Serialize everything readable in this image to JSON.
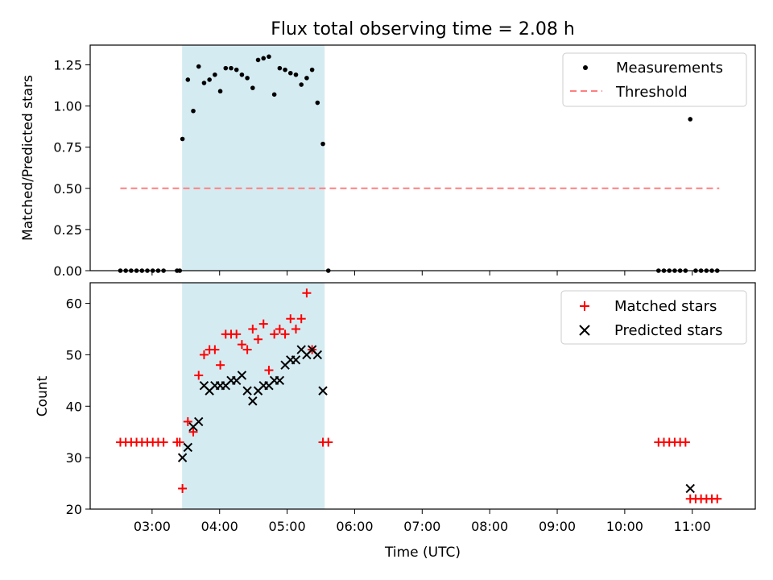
{
  "title": "Flux total observing time = 2.08 h",
  "colors": {
    "highlight": "#add8e6",
    "measurement": "#000000",
    "threshold": "#ff7f7f",
    "matched": "#ff0000",
    "predicted": "#000000"
  },
  "chart_data": [
    {
      "type": "scatter",
      "ylabel": "Matched/Predicted stars",
      "xlabel": "",
      "ylim": [
        0,
        1.37
      ],
      "xlim_hours": [
        2.0833,
        11.9333
      ],
      "yticks": [
        "0.00",
        "0.25",
        "0.50",
        "0.75",
        "1.00",
        "1.25"
      ],
      "grid": false,
      "legend_placement": "top-right",
      "legend": {
        "measurements": "Measurements",
        "threshold": "Threshold"
      },
      "highlight_span_hours": [
        3.45,
        5.55
      ],
      "threshold": {
        "value": 0.5,
        "x_from_hours": 2.53,
        "x_to_hours": 11.4
      },
      "series": [
        {
          "name": "Measurements",
          "points": [
            [
              2.53,
              0.0
            ],
            [
              2.61,
              0.0
            ],
            [
              2.69,
              0.0
            ],
            [
              2.77,
              0.0
            ],
            [
              2.85,
              0.0
            ],
            [
              2.93,
              0.0
            ],
            [
              3.01,
              0.0
            ],
            [
              3.09,
              0.0
            ],
            [
              3.17,
              0.0
            ],
            [
              3.37,
              0.0
            ],
            [
              3.41,
              0.0
            ],
            [
              3.45,
              0.8
            ],
            [
              3.53,
              1.16
            ],
            [
              3.61,
              0.97
            ],
            [
              3.69,
              1.24
            ],
            [
              3.77,
              1.14
            ],
            [
              3.85,
              1.16
            ],
            [
              3.93,
              1.19
            ],
            [
              4.01,
              1.09
            ],
            [
              4.09,
              1.23
            ],
            [
              4.17,
              1.23
            ],
            [
              4.25,
              1.22
            ],
            [
              4.33,
              1.19
            ],
            [
              4.41,
              1.17
            ],
            [
              4.49,
              1.11
            ],
            [
              4.57,
              1.28
            ],
            [
              4.65,
              1.29
            ],
            [
              4.73,
              1.3
            ],
            [
              4.81,
              1.07
            ],
            [
              4.89,
              1.23
            ],
            [
              4.97,
              1.22
            ],
            [
              5.05,
              1.2
            ],
            [
              5.13,
              1.19
            ],
            [
              5.21,
              1.13
            ],
            [
              5.29,
              1.17
            ],
            [
              5.37,
              1.22
            ],
            [
              5.45,
              1.02
            ],
            [
              5.53,
              0.77
            ],
            [
              5.61,
              0.0
            ],
            [
              10.5,
              0.0
            ],
            [
              10.58,
              0.0
            ],
            [
              10.66,
              0.0
            ],
            [
              10.74,
              0.0
            ],
            [
              10.82,
              0.0
            ],
            [
              10.9,
              0.0
            ],
            [
              10.97,
              0.92
            ],
            [
              11.05,
              0.0
            ],
            [
              11.13,
              0.0
            ],
            [
              11.21,
              0.0
            ],
            [
              11.29,
              0.0
            ],
            [
              11.37,
              0.0
            ]
          ]
        }
      ]
    },
    {
      "type": "scatter",
      "ylabel": "Count",
      "xlabel": "Time (UTC)",
      "ylim": [
        20,
        64
      ],
      "xlim_hours": [
        2.0833,
        11.9333
      ],
      "yticks": [
        "20",
        "30",
        "40",
        "50",
        "60"
      ],
      "xticks": [
        "03:00",
        "04:00",
        "05:00",
        "06:00",
        "07:00",
        "08:00",
        "09:00",
        "10:00",
        "11:00"
      ],
      "grid": false,
      "legend_placement": "top-right",
      "highlight_span_hours": [
        3.45,
        5.55
      ],
      "series": [
        {
          "name": "Matched stars",
          "points": [
            [
              2.53,
              33
            ],
            [
              2.61,
              33
            ],
            [
              2.69,
              33
            ],
            [
              2.77,
              33
            ],
            [
              2.85,
              33
            ],
            [
              2.93,
              33
            ],
            [
              3.01,
              33
            ],
            [
              3.09,
              33
            ],
            [
              3.17,
              33
            ],
            [
              3.37,
              33
            ],
            [
              3.41,
              33
            ],
            [
              3.45,
              24
            ],
            [
              3.53,
              37
            ],
            [
              3.61,
              35
            ],
            [
              3.69,
              46
            ],
            [
              3.77,
              50
            ],
            [
              3.85,
              51
            ],
            [
              3.93,
              51
            ],
            [
              4.01,
              48
            ],
            [
              4.09,
              54
            ],
            [
              4.17,
              54
            ],
            [
              4.25,
              54
            ],
            [
              4.33,
              52
            ],
            [
              4.41,
              51
            ],
            [
              4.49,
              55
            ],
            [
              4.57,
              53
            ],
            [
              4.65,
              56
            ],
            [
              4.73,
              47
            ],
            [
              4.81,
              54
            ],
            [
              4.89,
              55
            ],
            [
              4.97,
              54
            ],
            [
              5.05,
              57
            ],
            [
              5.13,
              55
            ],
            [
              5.21,
              57
            ],
            [
              5.29,
              62
            ],
            [
              5.37,
              51
            ],
            [
              5.53,
              33
            ],
            [
              5.61,
              33
            ],
            [
              10.5,
              33
            ],
            [
              10.58,
              33
            ],
            [
              10.66,
              33
            ],
            [
              10.74,
              33
            ],
            [
              10.82,
              33
            ],
            [
              10.9,
              33
            ],
            [
              10.97,
              22
            ],
            [
              11.05,
              22
            ],
            [
              11.13,
              22
            ],
            [
              11.21,
              22
            ],
            [
              11.29,
              22
            ],
            [
              11.37,
              22
            ]
          ]
        },
        {
          "name": "Predicted stars",
          "points": [
            [
              3.45,
              30
            ],
            [
              3.53,
              32
            ],
            [
              3.61,
              36
            ],
            [
              3.69,
              37
            ],
            [
              3.77,
              44
            ],
            [
              3.85,
              43
            ],
            [
              3.93,
              44
            ],
            [
              4.01,
              44
            ],
            [
              4.09,
              44
            ],
            [
              4.17,
              45
            ],
            [
              4.25,
              45
            ],
            [
              4.33,
              46
            ],
            [
              4.41,
              43
            ],
            [
              4.49,
              41
            ],
            [
              4.57,
              43
            ],
            [
              4.65,
              44
            ],
            [
              4.73,
              44
            ],
            [
              4.81,
              45
            ],
            [
              4.89,
              45
            ],
            [
              4.97,
              48
            ],
            [
              5.05,
              49
            ],
            [
              5.13,
              49
            ],
            [
              5.21,
              51
            ],
            [
              5.29,
              50
            ],
            [
              5.37,
              51
            ],
            [
              5.45,
              50
            ],
            [
              5.53,
              43
            ],
            [
              10.97,
              24
            ]
          ]
        }
      ]
    }
  ]
}
